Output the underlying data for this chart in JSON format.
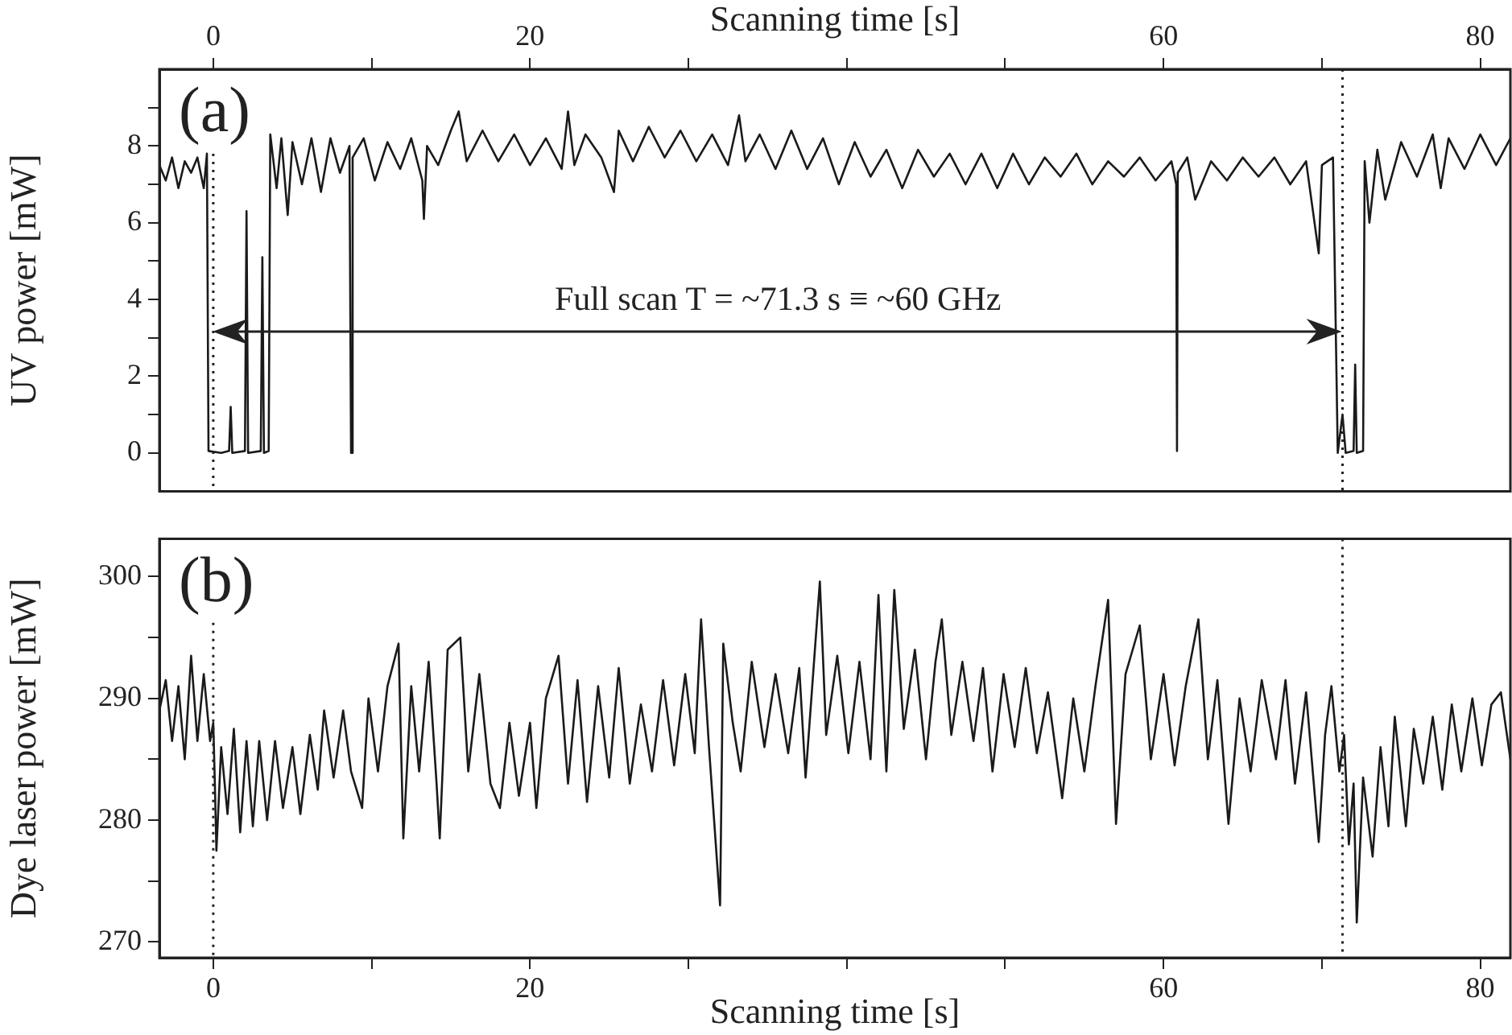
{
  "chart_data": [
    {
      "type": "line",
      "annotations": [
        "(a)",
        "Full scan T = ~71.3 s ≡ ~60 GHz"
      ],
      "xlabel": "Scanning time [s]",
      "ylabel": "UV power [mW]",
      "xlim": [
        -3.4,
        81.9
      ],
      "xticks": [
        0,
        {
          "value": 10,
          "label": null
        },
        20,
        {
          "value": 30,
          "label": null
        },
        {
          "value": 40,
          "label": null
        },
        {
          "value": 50,
          "label": null
        },
        60,
        {
          "value": 70,
          "label": null
        },
        80
      ],
      "ylim": [
        -1,
        10
      ],
      "yticks": [
        0,
        {
          "value": 1,
          "label": null
        },
        2,
        {
          "value": 3,
          "label": null
        },
        4,
        {
          "value": 5,
          "label": null
        },
        6,
        {
          "value": 7,
          "label": null
        },
        8,
        {
          "value": 9,
          "label": null
        }
      ],
      "marker": "none",
      "grid": false,
      "ref_lines": [
        {
          "axis": "x",
          "value": 0,
          "line_style": "dotted"
        },
        {
          "axis": "x",
          "value": 71.3,
          "line_style": "dotted"
        }
      ],
      "series": [
        {
          "color": "#1a1a1a",
          "x": [
            -3.4,
            -3.0,
            -2.6,
            -2.2,
            -1.8,
            -1.4,
            -1.0,
            -0.6,
            -0.4,
            -0.3,
            0.5,
            1.0,
            1.1,
            1.2,
            2.0,
            2.1,
            2.2,
            3.0,
            3.1,
            3.2,
            3.5,
            3.6,
            4.0,
            4.3,
            4.7,
            5.0,
            5.6,
            6.2,
            6.8,
            7.4,
            8.0,
            8.6,
            8.7,
            8.8,
            9.5,
            10.2,
            11,
            11.8,
            12.5,
            13.2,
            13.3,
            13.5,
            14.2,
            15.0,
            15.5,
            16.0,
            17.0,
            18.0,
            19.0,
            20.0,
            21.0,
            22.0,
            22.4,
            22.8,
            23.5,
            24.5,
            25.3,
            25.6,
            26.5,
            27.5,
            28.5,
            29.5,
            30.5,
            31.5,
            32.5,
            33.2,
            33.6,
            34.5,
            35.5,
            36.5,
            37.5,
            38.5,
            39.5,
            40.5,
            41.5,
            42.5,
            43.5,
            44.5,
            45.5,
            46.5,
            47.5,
            48.5,
            49.5,
            50.5,
            51.5,
            52.5,
            53.5,
            54.5,
            55.5,
            56.5,
            57.5,
            58.5,
            59.5,
            60.5,
            60.8,
            60.85,
            60.9,
            61.5,
            62.0,
            63.0,
            64.0,
            65.0,
            66.0,
            67.0,
            68.0,
            69.0,
            69.8,
            70.0,
            70.7,
            71.0,
            71.3,
            71.5,
            72.0,
            72.1,
            72.2,
            72.6,
            72.7,
            73.0,
            73.5,
            74.0,
            75.0,
            76.0,
            77.0,
            77.5,
            78.0,
            79.0,
            80.0,
            81.0,
            81.9
          ],
          "values": [
            7.5,
            7.1,
            7.7,
            6.9,
            7.6,
            7.3,
            7.7,
            6.9,
            7.8,
            0.05,
            0.0,
            0.05,
            1.2,
            0.0,
            0.05,
            6.3,
            0.0,
            0.05,
            5.1,
            0.0,
            0.05,
            8.3,
            6.9,
            8.2,
            6.2,
            8.1,
            7.0,
            8.2,
            6.8,
            8.2,
            7.3,
            8.0,
            0.0,
            7.7,
            8.2,
            7.1,
            8.1,
            7.4,
            8.2,
            7.1,
            6.1,
            8.0,
            7.5,
            8.4,
            8.9,
            7.6,
            8.4,
            7.6,
            8.3,
            7.5,
            8.2,
            7.4,
            8.9,
            7.5,
            8.3,
            7.7,
            6.8,
            8.4,
            7.6,
            8.5,
            7.7,
            8.4,
            7.6,
            8.3,
            7.5,
            8.8,
            7.6,
            8.3,
            7.4,
            8.4,
            7.4,
            8.2,
            7.0,
            8.1,
            7.2,
            7.9,
            6.9,
            7.9,
            7.2,
            7.8,
            7.0,
            7.8,
            6.9,
            7.8,
            7.0,
            7.7,
            7.2,
            7.8,
            7.0,
            7.6,
            7.2,
            7.7,
            7.1,
            7.6,
            7.0,
            0.05,
            7.3,
            7.7,
            6.6,
            7.6,
            7.1,
            7.7,
            7.2,
            7.7,
            7.0,
            7.6,
            5.2,
            7.5,
            7.7,
            0.0,
            1.0,
            0.0,
            0.05,
            2.3,
            0.0,
            0.05,
            7.6,
            6.0,
            7.9,
            6.6,
            8.1,
            7.2,
            8.3,
            6.9,
            8.2,
            7.4,
            8.3,
            7.5,
            8.2
          ]
        }
      ]
    },
    {
      "type": "line",
      "annotations": [
        "(b)"
      ],
      "xlabel": "Scanning time [s]",
      "ylabel": "Dye laser power [mW]",
      "xlim": [
        -3.4,
        81.9
      ],
      "xticks": [
        0,
        {
          "value": 10,
          "label": null
        },
        20,
        {
          "value": 30,
          "label": null
        },
        {
          "value": 40,
          "label": null
        },
        {
          "value": 50,
          "label": null
        },
        60,
        {
          "value": 70,
          "label": null
        },
        80
      ],
      "ylim": [
        268.7,
        303.1
      ],
      "yticks": [
        270,
        {
          "value": 275,
          "label": null
        },
        280,
        {
          "value": 285,
          "label": null
        },
        290,
        {
          "value": 295,
          "label": null
        },
        300
      ],
      "marker": "none",
      "grid": false,
      "ref_lines": [
        {
          "axis": "x",
          "value": 0,
          "line_style": "dotted"
        },
        {
          "axis": "x",
          "value": 71.3,
          "line_style": "dotted"
        }
      ],
      "series": [
        {
          "color": "#1a1a1a",
          "x": [
            -3.4,
            -3.0,
            -2.6,
            -2.2,
            -1.8,
            -1.4,
            -1.0,
            -0.6,
            -0.2,
            0.0,
            0.1,
            0.2,
            0.5,
            0.9,
            1.3,
            1.7,
            2.1,
            2.5,
            2.9,
            3.4,
            3.9,
            4.4,
            5.0,
            5.5,
            6.1,
            6.6,
            7.0,
            7.6,
            8.2,
            8.7,
            9.4,
            9.8,
            10.4,
            11.0,
            11.7,
            12.0,
            12.5,
            13.0,
            13.6,
            14.1,
            14.3,
            14.8,
            15.6,
            16.1,
            16.8,
            17.5,
            18.1,
            18.7,
            19.3,
            20.0,
            20.4,
            21.0,
            21.8,
            22.4,
            23.0,
            23.6,
            24.3,
            25.0,
            25.6,
            26.3,
            27.0,
            27.7,
            28.4,
            29.1,
            29.8,
            30.4,
            30.8,
            31.3,
            32.0,
            32.2,
            32.8,
            33.3,
            34.0,
            34.8,
            35.5,
            36.3,
            37.0,
            37.4,
            38.3,
            38.7,
            39.4,
            40.1,
            40.8,
            41.5,
            42.0,
            42.5,
            43.0,
            43.6,
            44.3,
            45.0,
            45.6,
            46.0,
            46.6,
            47.3,
            48.0,
            48.6,
            49.2,
            49.9,
            50.6,
            51.3,
            52.0,
            52.7,
            53.6,
            54.3,
            55.0,
            55.7,
            56.5,
            57.0,
            57.6,
            58.5,
            59.2,
            60.0,
            60.7,
            61.4,
            62.2,
            62.8,
            63.4,
            64.1,
            64.8,
            65.5,
            66.2,
            67.1,
            67.7,
            68.3,
            69.0,
            69.8,
            70.2,
            70.6,
            71.1,
            71.4,
            71.7,
            72.0,
            72.2,
            72.6,
            73.2,
            73.7,
            74.2,
            74.6,
            75.3,
            75.8,
            76.4,
            77.0,
            77.6,
            78.2,
            78.8,
            79.5,
            80.1,
            80.7,
            81.3,
            81.9
          ],
          "values": [
            289,
            291.5,
            286.5,
            291,
            285,
            293.5,
            286.5,
            292,
            286.5,
            288,
            283,
            277.5,
            286,
            280.5,
            287.5,
            279,
            286.5,
            279.5,
            286.5,
            280,
            286.5,
            281,
            286,
            280.5,
            287,
            282.5,
            289,
            283.5,
            289,
            284,
            281,
            290,
            284,
            291,
            294.5,
            278.5,
            291,
            284,
            293,
            283,
            278.5,
            294,
            295,
            284,
            292,
            283,
            281,
            288,
            282,
            288,
            281,
            290,
            293.5,
            283,
            291.5,
            281.5,
            291,
            283.5,
            292.5,
            283,
            289.5,
            284,
            291.5,
            284.5,
            292,
            285.5,
            296.5,
            286,
            273,
            294.5,
            288,
            284,
            293,
            286,
            292,
            285.5,
            292.5,
            283.5,
            299.6,
            287,
            293.5,
            285.5,
            293,
            285,
            298.5,
            284,
            298.9,
            287.5,
            294,
            285,
            293,
            296.5,
            287,
            293,
            286.5,
            292.5,
            284,
            292,
            286,
            292.5,
            285.5,
            290.5,
            281.8,
            290,
            284,
            291,
            298.1,
            279.7,
            292,
            296,
            285,
            292,
            284.5,
            291,
            296.5,
            285,
            291.5,
            279.7,
            290,
            284,
            291.5,
            285,
            291.5,
            283,
            290.5,
            278.2,
            287,
            291,
            284,
            287,
            278,
            283,
            271.6,
            283.5,
            277,
            286,
            279.5,
            288.5,
            279.5,
            287.5,
            283,
            288.5,
            282.5,
            289.5,
            284,
            290,
            284.5,
            289.5,
            290.5,
            285
          ]
        }
      ]
    }
  ]
}
